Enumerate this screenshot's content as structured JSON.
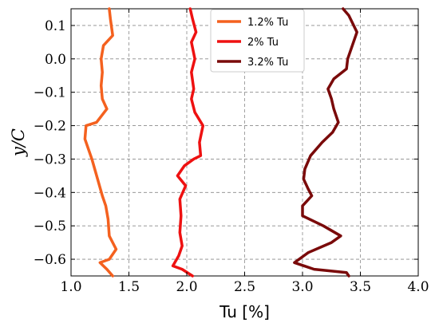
{
  "chart_data": {
    "type": "line",
    "title": "",
    "xlabel": "Tu [%]",
    "ylabel": "y/C",
    "xlim": [
      1.0,
      4.0
    ],
    "ylim": [
      -0.65,
      0.15
    ],
    "xticks": [
      1.0,
      1.5,
      2.0,
      2.5,
      3.0,
      3.5,
      4.0
    ],
    "xtick_labels": [
      "1.0",
      "1.5",
      "2.0",
      "2.5",
      "3.0",
      "3.5",
      "4.0"
    ],
    "yticks": [
      0.1,
      0.0,
      -0.1,
      -0.2,
      -0.3,
      -0.4,
      -0.5,
      -0.6
    ],
    "ytick_labels": [
      "0.1",
      "0.0",
      "−0.1",
      "−0.2",
      "−0.3",
      "−0.4",
      "−0.5",
      "−0.6"
    ],
    "grid": true,
    "legend_position": "top-center",
    "series": [
      {
        "name": "1.2% Tu",
        "color": "#f4611f",
        "points": [
          [
            1.33,
            0.15
          ],
          [
            1.34,
            0.12
          ],
          [
            1.36,
            0.07
          ],
          [
            1.28,
            0.04
          ],
          [
            1.26,
            0.0
          ],
          [
            1.27,
            -0.04
          ],
          [
            1.26,
            -0.08
          ],
          [
            1.27,
            -0.12
          ],
          [
            1.31,
            -0.15
          ],
          [
            1.22,
            -0.19
          ],
          [
            1.13,
            -0.2
          ],
          [
            1.12,
            -0.24
          ],
          [
            1.18,
            -0.3
          ],
          [
            1.23,
            -0.36
          ],
          [
            1.27,
            -0.41
          ],
          [
            1.3,
            -0.44
          ],
          [
            1.32,
            -0.48
          ],
          [
            1.33,
            -0.53
          ],
          [
            1.39,
            -0.57
          ],
          [
            1.33,
            -0.6
          ],
          [
            1.25,
            -0.61
          ],
          [
            1.31,
            -0.63
          ],
          [
            1.36,
            -0.65
          ]
        ]
      },
      {
        "name": "2% Tu",
        "color": "#ee1111",
        "points": [
          [
            2.03,
            0.15
          ],
          [
            2.05,
            0.12
          ],
          [
            2.08,
            0.08
          ],
          [
            2.04,
            0.05
          ],
          [
            2.07,
            0.0
          ],
          [
            2.04,
            -0.04
          ],
          [
            2.06,
            -0.09
          ],
          [
            2.04,
            -0.12
          ],
          [
            2.07,
            -0.16
          ],
          [
            2.14,
            -0.2
          ],
          [
            2.11,
            -0.25
          ],
          [
            2.12,
            -0.29
          ],
          [
            2.06,
            -0.3
          ],
          [
            1.98,
            -0.32
          ],
          [
            1.92,
            -0.35
          ],
          [
            1.99,
            -0.38
          ],
          [
            1.94,
            -0.42
          ],
          [
            1.95,
            -0.47
          ],
          [
            1.94,
            -0.52
          ],
          [
            1.96,
            -0.56
          ],
          [
            1.93,
            -0.59
          ],
          [
            1.88,
            -0.62
          ],
          [
            1.96,
            -0.63
          ],
          [
            2.05,
            -0.65
          ]
        ]
      },
      {
        "name": "3.2% Tu",
        "color": "#7a0a0a",
        "points": [
          [
            3.35,
            0.15
          ],
          [
            3.4,
            0.13
          ],
          [
            3.47,
            0.08
          ],
          [
            3.43,
            0.04
          ],
          [
            3.39,
            0.0
          ],
          [
            3.38,
            -0.03
          ],
          [
            3.27,
            -0.06
          ],
          [
            3.22,
            -0.09
          ],
          [
            3.25,
            -0.12
          ],
          [
            3.27,
            -0.15
          ],
          [
            3.31,
            -0.19
          ],
          [
            3.26,
            -0.22
          ],
          [
            3.17,
            -0.25
          ],
          [
            3.07,
            -0.29
          ],
          [
            3.02,
            -0.33
          ],
          [
            3.01,
            -0.36
          ],
          [
            3.05,
            -0.39
          ],
          [
            3.08,
            -0.41
          ],
          [
            3.0,
            -0.44
          ],
          [
            3.0,
            -0.47
          ],
          [
            3.18,
            -0.5
          ],
          [
            3.33,
            -0.53
          ],
          [
            3.25,
            -0.55
          ],
          [
            3.05,
            -0.58
          ],
          [
            2.93,
            -0.61
          ],
          [
            3.1,
            -0.63
          ],
          [
            3.38,
            -0.64
          ],
          [
            3.4,
            -0.65
          ]
        ]
      }
    ]
  }
}
